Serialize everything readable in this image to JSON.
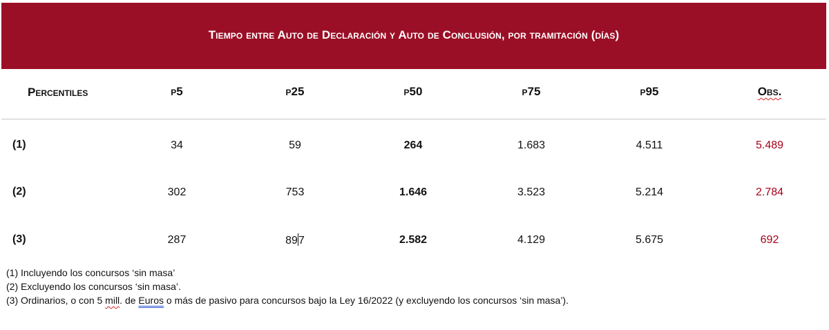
{
  "title": "Tiempo entre Auto de Declaración y Auto de Conclusión, por tramitación (días)",
  "header": {
    "first": "Percentiles",
    "p5": "p5",
    "p25": "p25",
    "p50": "p50",
    "p75": "p75",
    "p95": "p95",
    "obs": "Obs."
  },
  "rows": [
    {
      "label": "(1)",
      "p5": "34",
      "p25": "59",
      "p50": "264",
      "p75": "1.683",
      "p95": "4.511",
      "obs": "5.489"
    },
    {
      "label": "(2)",
      "p5": "302",
      "p25": "753",
      "p50": "1.646",
      "p75": "3.523",
      "p95": "5.214",
      "obs": "2.784"
    },
    {
      "label": "(3)",
      "p5": "287",
      "p25_a": "89",
      "p25_b": "7",
      "p50": "2.582",
      "p75": "4.129",
      "p95": "5.675",
      "obs": "692"
    }
  ],
  "notes": {
    "n1": "(1) Incluyendo los concursos ‘sin masa’",
    "n2": "(2) Excluyendo los concursos ‘sin masa’.",
    "n3_a": "(3) Ordinarios, o con 5 ",
    "n3_mill": "mill",
    "n3_b": ". de ",
    "n3_euros": "Euros",
    "n3_c": " o más de pasivo para concursos bajo la Ley 16/2022 (y excluyendo los concursos ‘sin masa’)."
  },
  "colors": {
    "header_bg": "#9b0f26",
    "obs_value": "#a6001a"
  }
}
